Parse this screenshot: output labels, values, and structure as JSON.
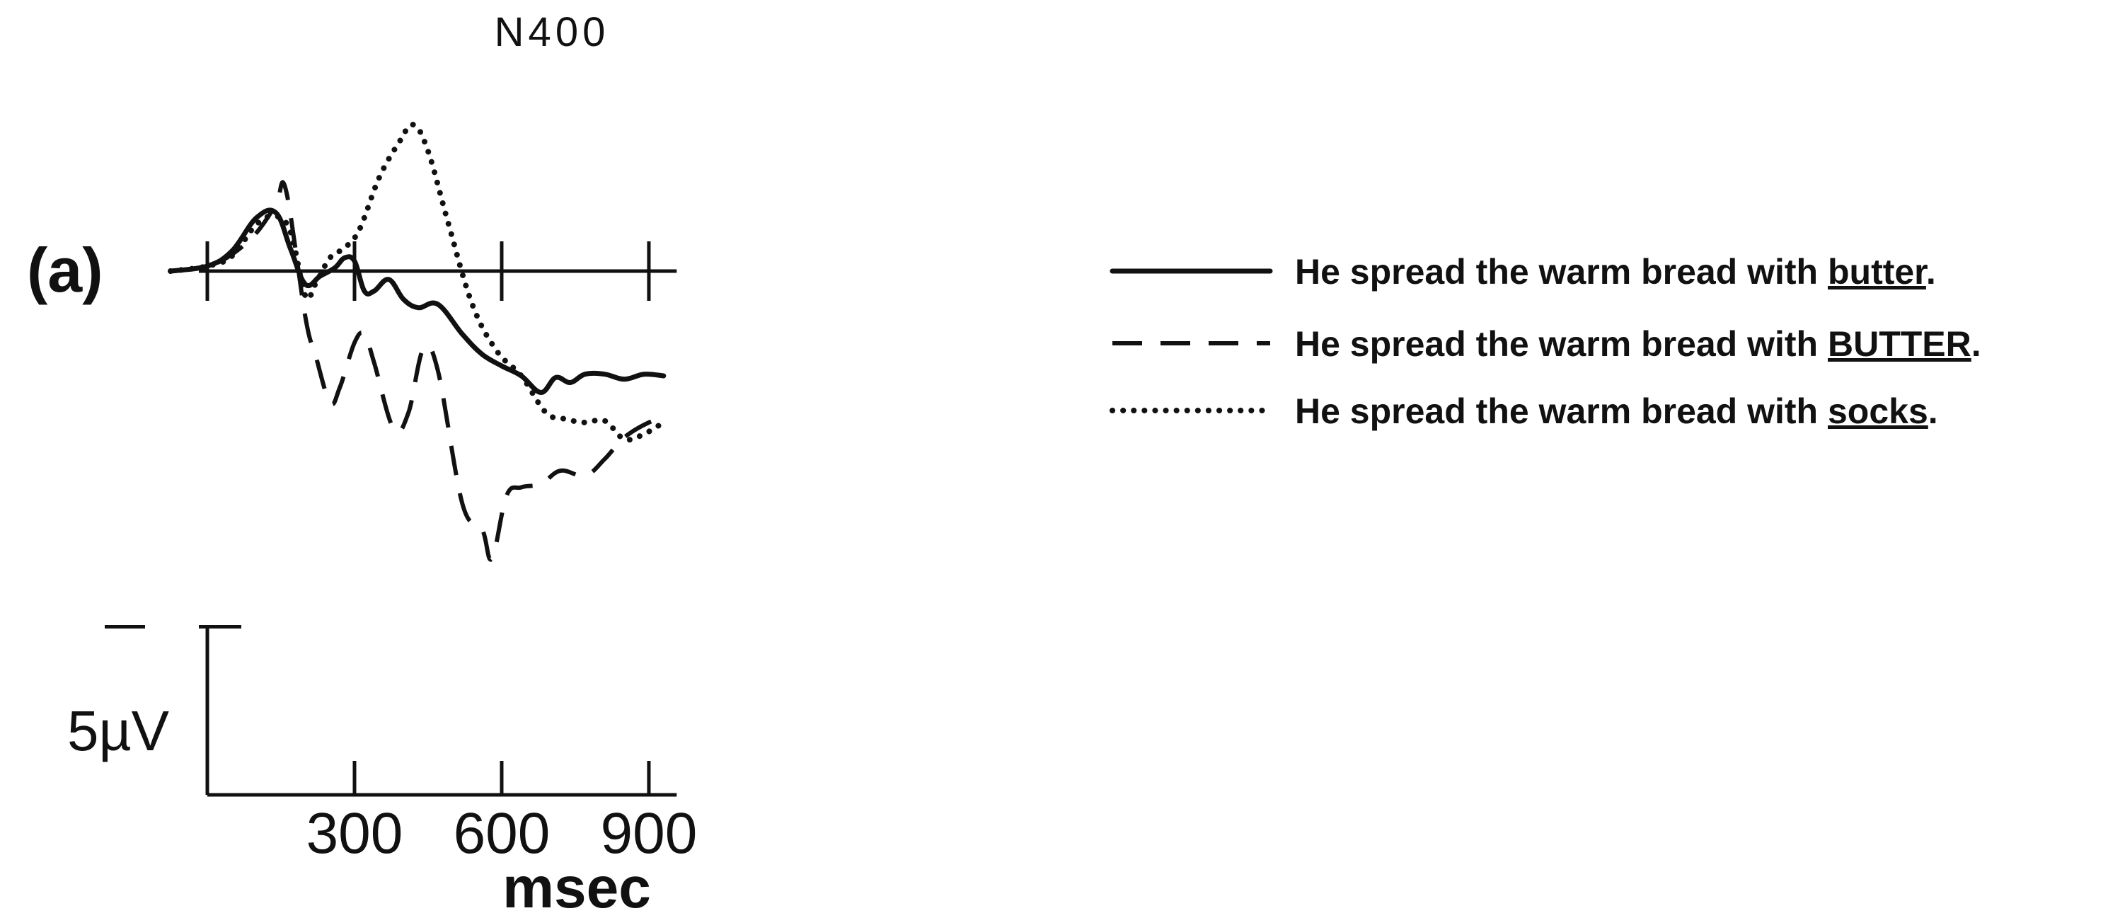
{
  "chart_data": {
    "type": "line",
    "panel_label": "(a)",
    "peak_annotation": "N400",
    "xlabel": "msec",
    "x_ticks": [
      {
        "value": 300,
        "label": "300"
      },
      {
        "value": 600,
        "label": "600"
      },
      {
        "value": 900,
        "label": "900"
      }
    ],
    "xlim": [
      -75,
      1000
    ],
    "ylim": [
      -17,
      10
    ],
    "y_axis_orientation": "negative-up",
    "scale_bar": {
      "label": "5µV",
      "value_uv": 5
    },
    "legend_placement": "right",
    "series": [
      {
        "style": "solid",
        "legend": {
          "prefix": "He spread the warm bread with ",
          "word": "butter",
          "suffix": "."
        },
        "points": [
          [
            -75,
            0
          ],
          [
            0,
            0.3
          ],
          [
            50,
            1.2
          ],
          [
            100,
            3.2
          ],
          [
            140,
            3.5
          ],
          [
            170,
            1.3
          ],
          [
            200,
            -0.8
          ],
          [
            230,
            -0.3
          ],
          [
            260,
            0.2
          ],
          [
            280,
            0.8
          ],
          [
            300,
            0.6
          ],
          [
            320,
            -1.2
          ],
          [
            340,
            -1.2
          ],
          [
            370,
            -0.5
          ],
          [
            400,
            -1.7
          ],
          [
            430,
            -2.2
          ],
          [
            470,
            -2.0
          ],
          [
            520,
            -3.8
          ],
          [
            560,
            -5.0
          ],
          [
            600,
            -5.7
          ],
          [
            640,
            -6.3
          ],
          [
            680,
            -7.3
          ],
          [
            710,
            -6.4
          ],
          [
            740,
            -6.7
          ],
          [
            770,
            -6.2
          ],
          [
            810,
            -6.2
          ],
          [
            850,
            -6.5
          ],
          [
            890,
            -6.2
          ],
          [
            930,
            -6.3
          ]
        ]
      },
      {
        "style": "dashed",
        "legend": {
          "prefix": "He spread the warm bread with ",
          "word": "BUTTER",
          "suffix": "."
        },
        "points": [
          [
            -75,
            0
          ],
          [
            0,
            0.3
          ],
          [
            50,
            1.0
          ],
          [
            100,
            2.3
          ],
          [
            140,
            4.0
          ],
          [
            160,
            4.9
          ],
          [
            200,
            -2.8
          ],
          [
            220,
            -5.0
          ],
          [
            250,
            -7.9
          ],
          [
            270,
            -7.0
          ],
          [
            300,
            -4.3
          ],
          [
            320,
            -3.8
          ],
          [
            340,
            -5.5
          ],
          [
            380,
            -9.5
          ],
          [
            410,
            -8.5
          ],
          [
            440,
            -4.7
          ],
          [
            470,
            -6.0
          ],
          [
            520,
            -14.0
          ],
          [
            560,
            -15.5
          ],
          [
            580,
            -17.3
          ],
          [
            610,
            -13.5
          ],
          [
            640,
            -13.0
          ],
          [
            680,
            -12.8
          ],
          [
            720,
            -12.0
          ],
          [
            770,
            -12.3
          ],
          [
            810,
            -11.3
          ],
          [
            850,
            -10.0
          ],
          [
            900,
            -9.1
          ],
          [
            935,
            -8.8
          ]
        ]
      },
      {
        "style": "dotted",
        "legend": {
          "prefix": "He spread the warm bread with ",
          "word": "socks",
          "suffix": "."
        },
        "points": [
          [
            -75,
            0
          ],
          [
            0,
            0.3
          ],
          [
            50,
            0.9
          ],
          [
            100,
            2.8
          ],
          [
            140,
            3.3
          ],
          [
            170,
            2.3
          ],
          [
            200,
            -1.5
          ],
          [
            220,
            -0.8
          ],
          [
            250,
            0.8
          ],
          [
            280,
            1.4
          ],
          [
            310,
            2.5
          ],
          [
            350,
            5.6
          ],
          [
            390,
            7.7
          ],
          [
            420,
            8.8
          ],
          [
            450,
            7.2
          ],
          [
            490,
            3.0
          ],
          [
            540,
            -2.0
          ],
          [
            590,
            -4.8
          ],
          [
            640,
            -6.3
          ],
          [
            690,
            -8.5
          ],
          [
            730,
            -8.9
          ],
          [
            770,
            -9.1
          ],
          [
            810,
            -9.0
          ],
          [
            850,
            -10.1
          ],
          [
            890,
            -9.8
          ],
          [
            935,
            -9.0
          ]
        ]
      }
    ]
  }
}
